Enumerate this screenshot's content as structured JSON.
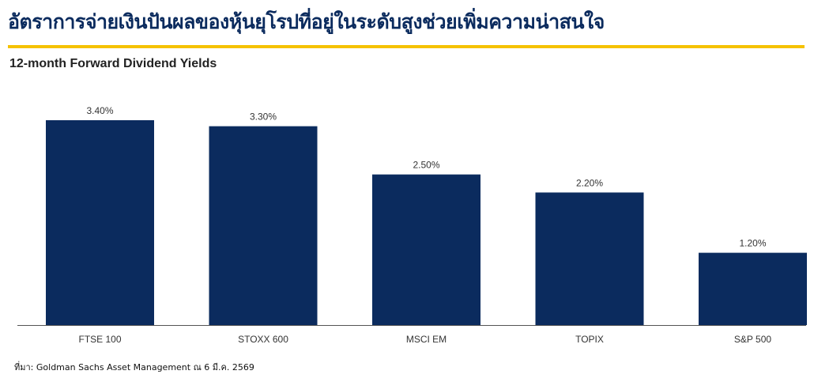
{
  "header": {
    "title": "อัตราการจ่ายเงินปันผลของหุ้นยุโรปที่อยู่ในระดับสูงช่วยเพิ่มความน่าสนใจ",
    "accent_color": "#f5c200",
    "title_color": "#0b2b5e"
  },
  "chart_data": {
    "type": "bar",
    "title": "12-month Forward Dividend Yields",
    "categories": [
      "FTSE 100",
      "STOXX 600",
      "MSCI EM",
      "TOPIX",
      "S&P 500"
    ],
    "values": [
      3.4,
      3.3,
      2.5,
      2.2,
      1.2
    ],
    "value_labels": [
      "3.40%",
      "3.30%",
      "2.50%",
      "2.20%",
      "1.20%"
    ],
    "ylim": [
      0,
      3.4
    ],
    "bar_color": "#0b2b5e",
    "grid": false,
    "xlabel": "",
    "ylabel": ""
  },
  "footer": {
    "source": "ที่มา: Goldman Sachs Asset Management ณ 6 มี.ค. 2569"
  }
}
